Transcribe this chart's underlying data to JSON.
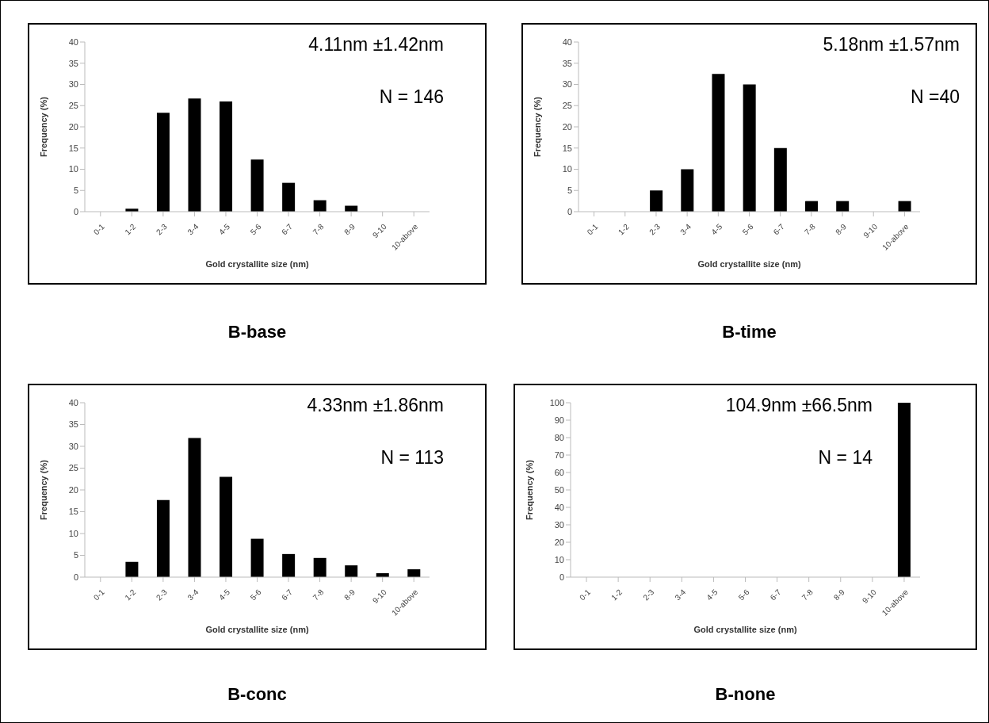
{
  "chart_data": [
    {
      "type": "bar",
      "title": "B-base",
      "xlabel": "Gold crystallite size (nm)",
      "ylabel": "Frequency (%)",
      "categories": [
        "0-1",
        "1-2",
        "2-3",
        "3-4",
        "4-5",
        "5-6",
        "6-7",
        "7-8",
        "8-9",
        "9-10",
        "10-above"
      ],
      "values": [
        0,
        0.7,
        23.3,
        26.7,
        26.0,
        12.3,
        6.8,
        2.7,
        1.4,
        0,
        0
      ],
      "color": "#000000",
      "ylim": [
        0,
        40
      ],
      "yticks": [
        0,
        5,
        10,
        15,
        20,
        25,
        30,
        35,
        40
      ],
      "grid": false,
      "annotations": [
        "4.11nm ±1.42nm",
        "N = 146"
      ]
    },
    {
      "type": "bar",
      "title": "B-time",
      "xlabel": "Gold crystallite size (nm)",
      "ylabel": "Frequency (%)",
      "categories": [
        "0-1",
        "1-2",
        "2-3",
        "3-4",
        "4-5",
        "5-6",
        "6-7",
        "7-8",
        "8-9",
        "9-10",
        "10-above"
      ],
      "values": [
        0,
        0,
        5,
        10,
        32.5,
        30,
        15,
        2.5,
        2.5,
        0,
        2.5
      ],
      "color": "#000000",
      "ylim": [
        0,
        40
      ],
      "yticks": [
        0,
        5,
        10,
        15,
        20,
        25,
        30,
        35,
        40
      ],
      "grid": false,
      "annotations": [
        "5.18nm ±1.57nm",
        "N =40"
      ]
    },
    {
      "type": "bar",
      "title": "B-conc",
      "xlabel": "Gold crystallite size (nm)",
      "ylabel": "Frequency (%)",
      "categories": [
        "0-1",
        "1-2",
        "2-3",
        "3-4",
        "4-5",
        "5-6",
        "6-7",
        "7-8",
        "8-9",
        "9-10",
        "10-above"
      ],
      "values": [
        0,
        3.5,
        17.7,
        31.9,
        23.0,
        8.8,
        5.3,
        4.4,
        2.7,
        0.9,
        1.8
      ],
      "color": "#000000",
      "ylim": [
        0,
        40
      ],
      "yticks": [
        0,
        5,
        10,
        15,
        20,
        25,
        30,
        35,
        40
      ],
      "grid": false,
      "annotations": [
        "4.33nm ±1.86nm",
        "N = 113"
      ]
    },
    {
      "type": "bar",
      "title": "B-none",
      "xlabel": "Gold crystallite size (nm)",
      "ylabel": "Frequency (%)",
      "categories": [
        "0-1",
        "1-2",
        "2-3",
        "3-4",
        "4-5",
        "5-6",
        "6-7",
        "7-8",
        "8-9",
        "9-10",
        "10-above"
      ],
      "values": [
        0,
        0,
        0,
        0,
        0,
        0,
        0,
        0,
        0,
        0,
        100
      ],
      "color": "#000000",
      "ylim": [
        0,
        100
      ],
      "yticks": [
        0,
        10,
        20,
        30,
        40,
        50,
        60,
        70,
        80,
        90,
        100
      ],
      "grid": false,
      "annotations": [
        "104.9nm ±66.5nm",
        "N = 14"
      ]
    }
  ]
}
